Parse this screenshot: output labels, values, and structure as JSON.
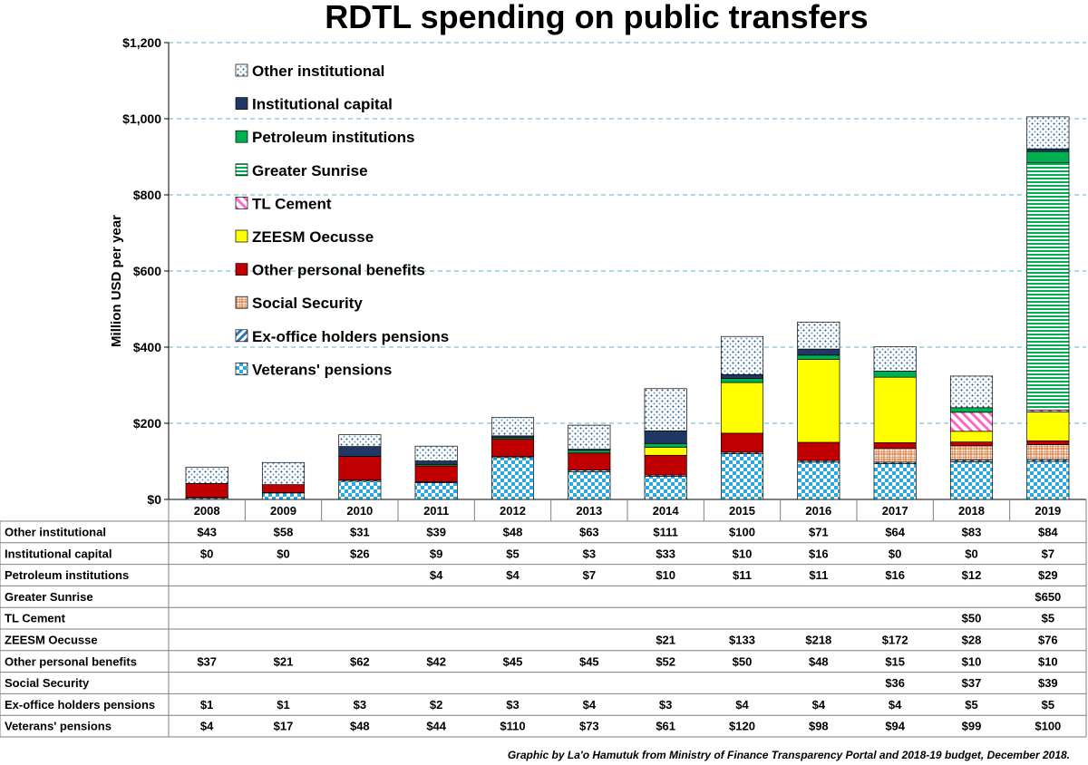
{
  "chart_data": {
    "type": "bar",
    "stacked": true,
    "title": "RDTL spending on public transfers",
    "ylabel": "Million USD per year",
    "xlabel": "",
    "ylim": [
      0,
      1200
    ],
    "yticks": [
      0,
      200,
      400,
      600,
      800,
      1000,
      1200
    ],
    "ytick_labels": [
      "$0",
      "$200",
      "$400",
      "$600",
      "$800",
      "$1,000",
      "$1,200"
    ],
    "grid": "horizontal dashed",
    "legend_position": "top-left",
    "categories": [
      "2008",
      "2009",
      "2010",
      "2011",
      "2012",
      "2013",
      "2014",
      "2015",
      "2016",
      "2017",
      "2018",
      "2019"
    ],
    "series": [
      {
        "name": "Veterans' pensions",
        "color": "#29a9e0",
        "pattern": "checker",
        "values": [
          4,
          17,
          48,
          44,
          110,
          73,
          61,
          120,
          98,
          94,
          99,
          100
        ]
      },
      {
        "name": "Ex-office holders pensions",
        "color": "#2e75b6",
        "pattern": "diagonal",
        "values": [
          1,
          1,
          3,
          2,
          3,
          4,
          3,
          4,
          4,
          4,
          5,
          5
        ]
      },
      {
        "name": "Social Security",
        "color": "#f4b183",
        "pattern": "grid",
        "values": [
          null,
          null,
          null,
          null,
          null,
          null,
          null,
          null,
          null,
          36,
          37,
          39
        ]
      },
      {
        "name": "Other personal benefits",
        "color": "#c00000",
        "pattern": "solid",
        "values": [
          37,
          21,
          62,
          42,
          45,
          45,
          52,
          50,
          48,
          15,
          10,
          10
        ]
      },
      {
        "name": "ZEESM Oecusse",
        "color": "#ffff00",
        "pattern": "solid",
        "values": [
          null,
          null,
          null,
          null,
          null,
          null,
          21,
          133,
          218,
          172,
          28,
          76
        ]
      },
      {
        "name": "TL Cement",
        "color": "#ff66cc",
        "pattern": "diagonal",
        "values": [
          null,
          null,
          null,
          null,
          null,
          null,
          null,
          null,
          null,
          null,
          50,
          5
        ]
      },
      {
        "name": "Greater Sunrise",
        "color": "#00b050",
        "pattern": "hlines",
        "values": [
          null,
          null,
          null,
          null,
          null,
          null,
          null,
          null,
          null,
          null,
          null,
          650
        ]
      },
      {
        "name": "Petroleum institutions",
        "color": "#00b050",
        "pattern": "solid",
        "values": [
          null,
          null,
          null,
          4,
          4,
          7,
          10,
          11,
          11,
          16,
          12,
          29
        ]
      },
      {
        "name": "Institutional capital",
        "color": "#1f3864",
        "pattern": "solid",
        "values": [
          0,
          0,
          26,
          9,
          5,
          3,
          33,
          10,
          16,
          0,
          0,
          7
        ]
      },
      {
        "name": "Other institutional",
        "color": "#9dc3e6",
        "pattern": "dots",
        "values": [
          43,
          58,
          31,
          39,
          48,
          63,
          111,
          100,
          71,
          64,
          83,
          84
        ]
      }
    ],
    "table": {
      "row_order": [
        "Other institutional",
        "Institutional capital",
        "Petroleum institutions",
        "Greater Sunrise",
        "TL Cement",
        "ZEESM Oecusse",
        "Other personal benefits",
        "Social Security",
        "Ex-office holders pensions",
        "Veterans' pensions"
      ],
      "rows": {
        "Other institutional": [
          "$43",
          "$58",
          "$31",
          "$39",
          "$48",
          "$63",
          "$111",
          "$100",
          "$71",
          "$64",
          "$83",
          "$84"
        ],
        "Institutional capital": [
          "$0",
          "$0",
          "$26",
          "$9",
          "$5",
          "$3",
          "$33",
          "$10",
          "$16",
          "$0",
          "$0",
          "$7"
        ],
        "Petroleum institutions": [
          "",
          "",
          "",
          "$4",
          "$4",
          "$7",
          "$10",
          "$11",
          "$11",
          "$16",
          "$12",
          "$29"
        ],
        "Greater Sunrise": [
          "",
          "",
          "",
          "",
          "",
          "",
          "",
          "",
          "",
          "",
          "",
          "$650"
        ],
        "TL Cement": [
          "",
          "",
          "",
          "",
          "",
          "",
          "",
          "",
          "",
          "",
          "$50",
          "$5"
        ],
        "ZEESM Oecusse": [
          "",
          "",
          "",
          "",
          "",
          "",
          "$21",
          "$133",
          "$218",
          "$172",
          "$28",
          "$76"
        ],
        "Other personal benefits": [
          "$37",
          "$21",
          "$62",
          "$42",
          "$45",
          "$45",
          "$52",
          "$50",
          "$48",
          "$15",
          "$10",
          "$10"
        ],
        "Social Security": [
          "",
          "",
          "",
          "",
          "",
          "",
          "",
          "",
          "",
          "$36",
          "$37",
          "$39"
        ],
        "Ex-office holders pensions": [
          "$1",
          "$1",
          "$3",
          "$2",
          "$3",
          "$4",
          "$3",
          "$4",
          "$4",
          "$4",
          "$5",
          "$5"
        ],
        "Veterans' pensions": [
          "$4",
          "$17",
          "$48",
          "$44",
          "$110",
          "$73",
          "$61",
          "$120",
          "$98",
          "$94",
          "$99",
          "$100"
        ]
      }
    },
    "credit": "Graphic by La'o Hamutuk from Ministry of Finance Transparency Portal and 2018-19 budget, December 2018."
  }
}
